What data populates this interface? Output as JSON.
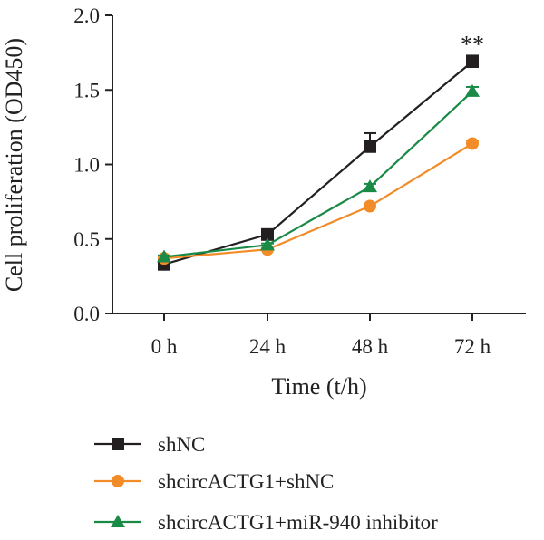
{
  "chart_data": {
    "type": "line",
    "xlabel": "Time (t/h)",
    "ylabel": "Cell proliferation (OD450)",
    "categories": [
      "0 h",
      "24 h",
      "48 h",
      "72 h"
    ],
    "ylim": [
      0.0,
      2.0
    ],
    "yticks": [
      "0.0",
      "0.5",
      "1.0",
      "1.5",
      "2.0"
    ],
    "series": [
      {
        "name": "shNC",
        "marker": "square",
        "color": "#231f20",
        "values": [
          0.33,
          0.53,
          1.12,
          1.69
        ],
        "errors": [
          0.02,
          0.02,
          0.09,
          0.04
        ]
      },
      {
        "name": "shcircACTG1+shNC",
        "marker": "circle",
        "color": "#f28c28",
        "values": [
          0.37,
          0.43,
          0.72,
          1.14
        ],
        "errors": [
          0.01,
          0.01,
          0.02,
          0.02
        ]
      },
      {
        "name": "shcircACTG1+miR-940 inhibitor",
        "marker": "triangle",
        "color": "#1a8a47",
        "values": [
          0.38,
          0.46,
          0.85,
          1.49
        ],
        "errors": [
          0.01,
          0.01,
          0.02,
          0.03
        ]
      }
    ],
    "annotations": [
      {
        "text": "**",
        "category": "72 h"
      }
    ],
    "legend_position": "bottom"
  }
}
